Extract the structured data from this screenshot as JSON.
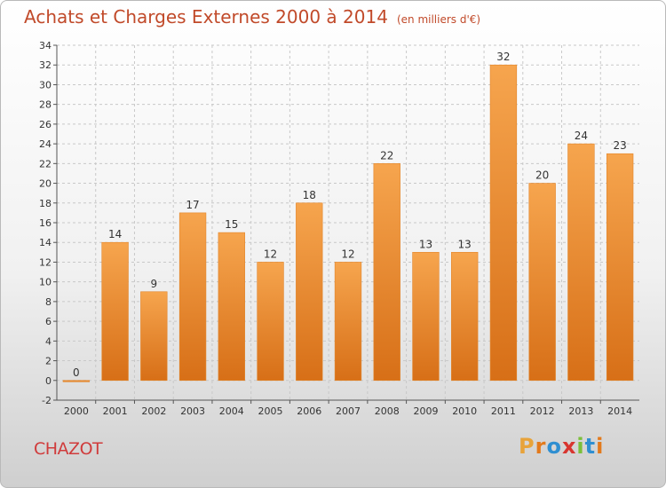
{
  "header": {
    "title": "Achats et Charges Externes 2000 à 2014",
    "unit": "(en milliers d'€)"
  },
  "footer": {
    "place": "CHAZOT",
    "logo_text": "Proxiti"
  },
  "colors": {
    "bar_light": "#f6a54e",
    "bar_dark": "#d76f17",
    "title": "#c14a2a",
    "place": "#d03b3b",
    "logo": [
      "#e8a33a",
      "#e37a1c",
      "#2f8fd1",
      "#d8352f",
      "#7bbf3a",
      "#2f8fd1",
      "#e37a1c"
    ]
  },
  "chart_data": {
    "type": "bar",
    "categories": [
      "2000",
      "2001",
      "2002",
      "2003",
      "2004",
      "2005",
      "2006",
      "2007",
      "2008",
      "2009",
      "2010",
      "2011",
      "2012",
      "2013",
      "2014"
    ],
    "values": [
      0,
      14,
      9,
      17,
      15,
      12,
      18,
      12,
      22,
      13,
      13,
      32,
      20,
      24,
      23
    ],
    "ylim": [
      -2,
      34
    ],
    "ytick_step": 2,
    "grid": true,
    "data_labels": true
  }
}
